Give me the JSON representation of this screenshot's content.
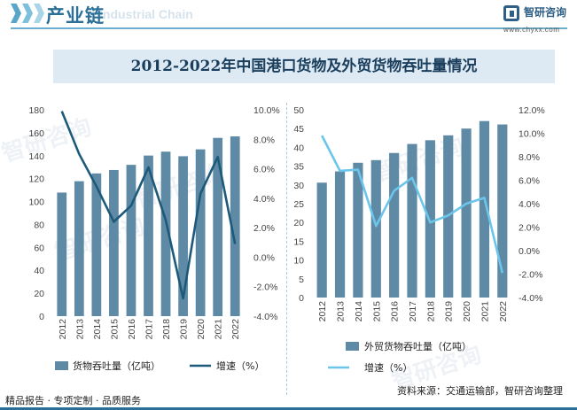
{
  "header": {
    "title": "产业链",
    "watermark_text": "Industrial Chain"
  },
  "logo": {
    "name": "智研咨询",
    "url": "www.chyxx.com"
  },
  "title": "2012-2022年中国港口货物及外贸货物吞吐量情况",
  "colors": {
    "bar": "#5f8aa6",
    "left_line": "#1d5a7a",
    "right_line": "#6cc5ea",
    "accent": "#2a6f97"
  },
  "watermarks": [
    "智研咨询",
    "智研咨询",
    "智研咨询",
    "智研咨询",
    "智研咨询"
  ],
  "footer": {
    "left": "精品报告 · 专项定制 · 品质服务",
    "source": "资料来源：交通运输部，智研咨询整理"
  },
  "chart_data": [
    {
      "type": "bar",
      "categories": [
        "2012",
        "2013",
        "2014",
        "2015",
        "2016",
        "2017",
        "2018",
        "2019",
        "2020",
        "2021",
        "2022"
      ],
      "series": [
        {
          "name": "货物吞吐量（亿吨）",
          "type": "bar",
          "axis": "left",
          "values": [
            107.8,
            117.7,
            124.5,
            127.5,
            132.0,
            140.1,
            143.5,
            139.5,
            145.5,
            155.5,
            156.8
          ]
        },
        {
          "name": "增速（%）",
          "type": "line",
          "axis": "right",
          "values": [
            9.9,
            7.0,
            4.8,
            2.4,
            3.5,
            6.1,
            2.5,
            -2.8,
            4.3,
            6.8,
            0.9
          ]
        }
      ],
      "ylim_left": [
        0,
        180
      ],
      "yticks_left": [
        "0",
        "20",
        "40",
        "60",
        "80",
        "100",
        "120",
        "140",
        "160",
        "180"
      ],
      "ylim_right": [
        -4,
        10
      ],
      "yticks_right": [
        "-4.0%",
        "-2.0%",
        "0.0%",
        "2.0%",
        "4.0%",
        "6.0%",
        "8.0%",
        "10.0%"
      ],
      "legend_placement": "bottom"
    },
    {
      "type": "bar",
      "categories": [
        "2012",
        "2013",
        "2014",
        "2015",
        "2016",
        "2017",
        "2018",
        "2019",
        "2020",
        "2021",
        "2022"
      ],
      "series": [
        {
          "name": "外贸货物吞吐量（亿吨）",
          "type": "bar",
          "axis": "left",
          "values": [
            30.6,
            33.6,
            35.9,
            36.6,
            38.5,
            40.9,
            41.9,
            43.2,
            45.0,
            47.0,
            46.1
          ]
        },
        {
          "name": "增速（%）",
          "type": "line",
          "axis": "right",
          "values": [
            9.8,
            6.8,
            6.9,
            2.1,
            5.1,
            6.2,
            2.4,
            3.0,
            4.0,
            4.5,
            -1.9
          ]
        }
      ],
      "ylim_left": [
        0,
        50
      ],
      "yticks_left": [
        "0",
        "5",
        "10",
        "15",
        "20",
        "25",
        "30",
        "35",
        "40",
        "45",
        "50"
      ],
      "ylim_right": [
        -4,
        12
      ],
      "yticks_right": [
        "-4.0%",
        "-2.0%",
        "0.0%",
        "2.0%",
        "4.0%",
        "6.0%",
        "8.0%",
        "10.0%",
        "12.0%"
      ],
      "legend_placement": "bottom"
    }
  ]
}
